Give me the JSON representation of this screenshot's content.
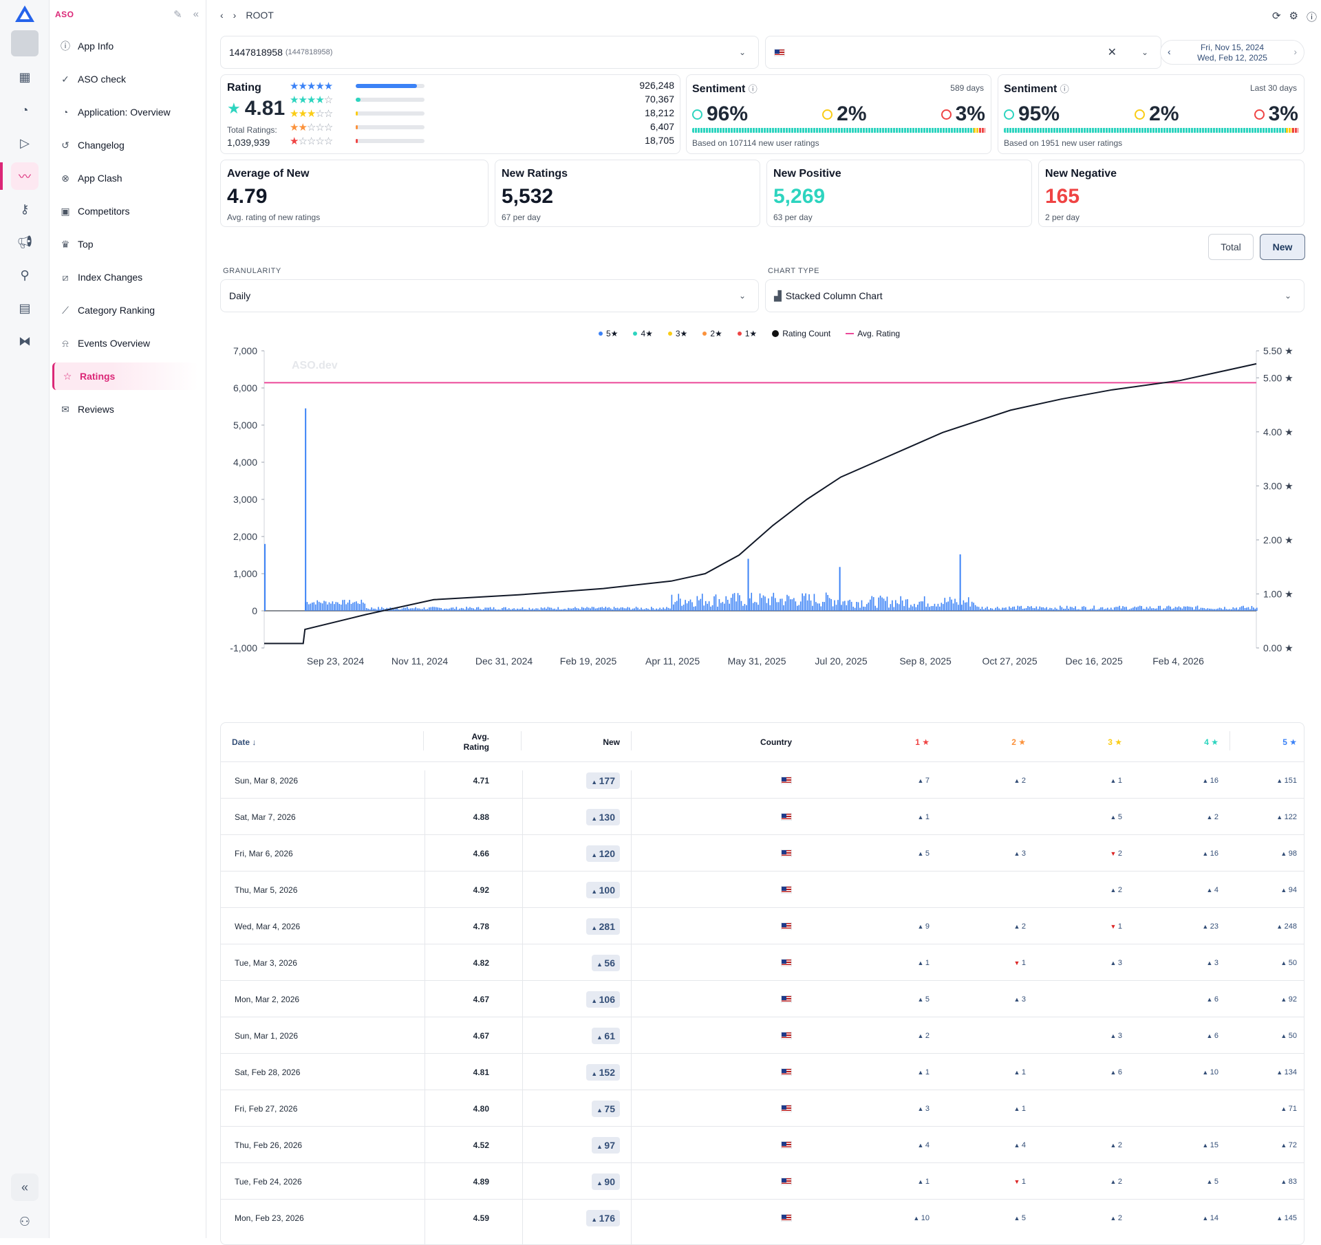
{
  "sidebar": {
    "section_title": "ASO",
    "items": [
      {
        "label": "App Info",
        "icon": "info-icon"
      },
      {
        "label": "ASO check",
        "icon": "check-circle-icon"
      },
      {
        "label": "Application: Overview",
        "icon": "pie-chart-icon"
      },
      {
        "label": "Changelog",
        "icon": "history-icon"
      },
      {
        "label": "App Clash",
        "icon": "clash-icon"
      },
      {
        "label": "Competitors",
        "icon": "competitors-icon"
      },
      {
        "label": "Top",
        "icon": "trophy-icon"
      },
      {
        "label": "Index Changes",
        "icon": "index-icon"
      },
      {
        "label": "Category Ranking",
        "icon": "trend-icon"
      },
      {
        "label": "Events Overview",
        "icon": "bell-icon"
      },
      {
        "label": "Ratings",
        "icon": "star-icon",
        "active": true
      },
      {
        "label": "Reviews",
        "icon": "reviews-icon"
      }
    ]
  },
  "topbar": {
    "breadcrumb": "ROOT"
  },
  "filters": {
    "app_id": "1447818958",
    "app_id_sub": "(1447818958)",
    "date_from": "Fri, Nov 15, 2024",
    "date_to": "Wed, Feb 12, 2025"
  },
  "rating_card": {
    "title": "Rating",
    "value": "4.81",
    "total_label": "Total Ratings:",
    "total_value": "1,039,939",
    "counts": [
      "926,248",
      "70,367",
      "18,212",
      "6,407",
      "18,705"
    ],
    "fractions": [
      0.89,
      0.068,
      0.018,
      0.006,
      0.018
    ]
  },
  "sentiment_1": {
    "title": "Sentiment",
    "period": "589 days",
    "positive": "96%",
    "neutral": "2%",
    "negative": "3%",
    "note": "Based on 107114 new user ratings"
  },
  "sentiment_2": {
    "title": "Sentiment",
    "period": "Last 30 days",
    "positive": "95%",
    "neutral": "2%",
    "negative": "3%",
    "note": "Based on 1951 new user ratings"
  },
  "stats": [
    {
      "title": "Average of New",
      "value": "4.79",
      "sub": "Avg. rating of new ratings",
      "color": "#111827"
    },
    {
      "title": "New Ratings",
      "value": "5,532",
      "sub": "67 per day",
      "color": "#111827"
    },
    {
      "title": "New Positive",
      "value": "5,269",
      "sub": "63 per day",
      "color": "#2dd4bf"
    },
    {
      "title": "New Negative",
      "value": "165",
      "sub": "2 per day",
      "color": "#ef4444"
    }
  ],
  "toggle": {
    "total": "Total",
    "new": "New"
  },
  "granularity": {
    "label": "GRANULARITY",
    "value": "Daily"
  },
  "chart_type": {
    "label": "CHART TYPE",
    "value": "Stacked Column Chart"
  },
  "legend": [
    "5★",
    "4★",
    "3★",
    "2★",
    "1★",
    "Rating Count",
    "Avg. Rating"
  ],
  "watermark": "ASO.dev",
  "chart_data": {
    "type": "bar",
    "y_ticks": [
      "7,000",
      "6,000",
      "5,000",
      "4,000",
      "3,000",
      "2,000",
      "1,000",
      "0",
      "-1,000"
    ],
    "y2_ticks": [
      "5.50 ★",
      "5.00 ★",
      "4.00 ★",
      "3.00 ★",
      "2.00 ★",
      "1.00 ★",
      "0.00 ★"
    ],
    "x_ticks": [
      "Sep 23, 2024",
      "Nov 11, 2024",
      "Dec 31, 2024",
      "Feb 19, 2025",
      "Apr 11, 2025",
      "May 31, 2025",
      "Jul 20, 2025",
      "Sep 8, 2025",
      "Oct 27, 2025",
      "Dec 16, 2025",
      "Feb 4, 2026"
    ],
    "ylim": [
      -1000,
      7000
    ],
    "y2lim": [
      0,
      5.5
    ],
    "xlim_days": [
      0,
      585
    ],
    "spikes": [
      [
        0,
        1800
      ],
      [
        24,
        5450
      ],
      [
        285,
        1400
      ],
      [
        339,
        1180
      ],
      [
        410,
        1520
      ]
    ],
    "cumulative": [
      [
        0,
        -880
      ],
      [
        23,
        -880
      ],
      [
        24,
        -500
      ],
      [
        60,
        -100
      ],
      [
        100,
        300
      ],
      [
        150,
        430
      ],
      [
        200,
        600
      ],
      [
        240,
        800
      ],
      [
        260,
        1000
      ],
      [
        280,
        1500
      ],
      [
        300,
        2300
      ],
      [
        320,
        3000
      ],
      [
        340,
        3600
      ],
      [
        360,
        4000
      ],
      [
        380,
        4400
      ],
      [
        400,
        4800
      ],
      [
        420,
        5100
      ],
      [
        440,
        5400
      ],
      [
        470,
        5700
      ],
      [
        500,
        5950
      ],
      [
        540,
        6200
      ],
      [
        585,
        6650
      ]
    ],
    "avg_rating": 4.91
  },
  "table": {
    "headers": {
      "date": "Date ↓",
      "avg1": "Avg.",
      "avg2": "Rating",
      "new": "New",
      "country": "Country",
      "s1": "1 ★",
      "s2": "2 ★",
      "s3": "3 ★",
      "s4": "4 ★",
      "s5": "5 ★"
    },
    "rows": [
      {
        "date": "Sun, Mar 8, 2026",
        "avg": "4.71",
        "new": "177",
        "s1": "7",
        "s2": "2",
        "s3": "1",
        "s4": "16",
        "s5": "151"
      },
      {
        "date": "Sat, Mar 7, 2026",
        "avg": "4.88",
        "new": "130",
        "s1": "1",
        "s2": "",
        "s3": "5",
        "s4": "2",
        "s5": "122"
      },
      {
        "date": "Fri, Mar 6, 2026",
        "avg": "4.66",
        "new": "120",
        "s1": "5",
        "s2": "3",
        "s3": "2",
        "s3_down": true,
        "s4": "16",
        "s5": "98"
      },
      {
        "date": "Thu, Mar 5, 2026",
        "avg": "4.92",
        "new": "100",
        "s1": "",
        "s2": "",
        "s3": "2",
        "s4": "4",
        "s5": "94"
      },
      {
        "date": "Wed, Mar 4, 2026",
        "avg": "4.78",
        "new": "281",
        "s1": "9",
        "s2": "2",
        "s3": "1",
        "s3_down": true,
        "s4": "23",
        "s5": "248"
      },
      {
        "date": "Tue, Mar 3, 2026",
        "avg": "4.82",
        "new": "56",
        "s1": "1",
        "s2": "1",
        "s2_down": true,
        "s3": "3",
        "s4": "3",
        "s5": "50"
      },
      {
        "date": "Mon, Mar 2, 2026",
        "avg": "4.67",
        "new": "106",
        "s1": "5",
        "s2": "3",
        "s3": "",
        "s4": "6",
        "s5": "92"
      },
      {
        "date": "Sun, Mar 1, 2026",
        "avg": "4.67",
        "new": "61",
        "s1": "2",
        "s2": "",
        "s3": "3",
        "s4": "6",
        "s5": "50"
      },
      {
        "date": "Sat, Feb 28, 2026",
        "avg": "4.81",
        "new": "152",
        "s1": "1",
        "s2": "1",
        "s3": "6",
        "s4": "10",
        "s5": "134"
      },
      {
        "date": "Fri, Feb 27, 2026",
        "avg": "4.80",
        "new": "75",
        "s1": "3",
        "s2": "1",
        "s3": "",
        "s4": "",
        "s5": "71"
      },
      {
        "date": "Thu, Feb 26, 2026",
        "avg": "4.52",
        "new": "97",
        "s1": "4",
        "s2": "4",
        "s3": "2",
        "s4": "15",
        "s5": "72"
      },
      {
        "date": "Tue, Feb 24, 2026",
        "avg": "4.89",
        "new": "90",
        "s1": "1",
        "s2": "1",
        "s2_down": true,
        "s3": "2",
        "s4": "5",
        "s5": "83"
      },
      {
        "date": "Mon, Feb 23, 2026",
        "avg": "4.59",
        "new": "176",
        "s1": "10",
        "s2": "5",
        "s3": "2",
        "s4": "14",
        "s5": "145"
      }
    ]
  }
}
